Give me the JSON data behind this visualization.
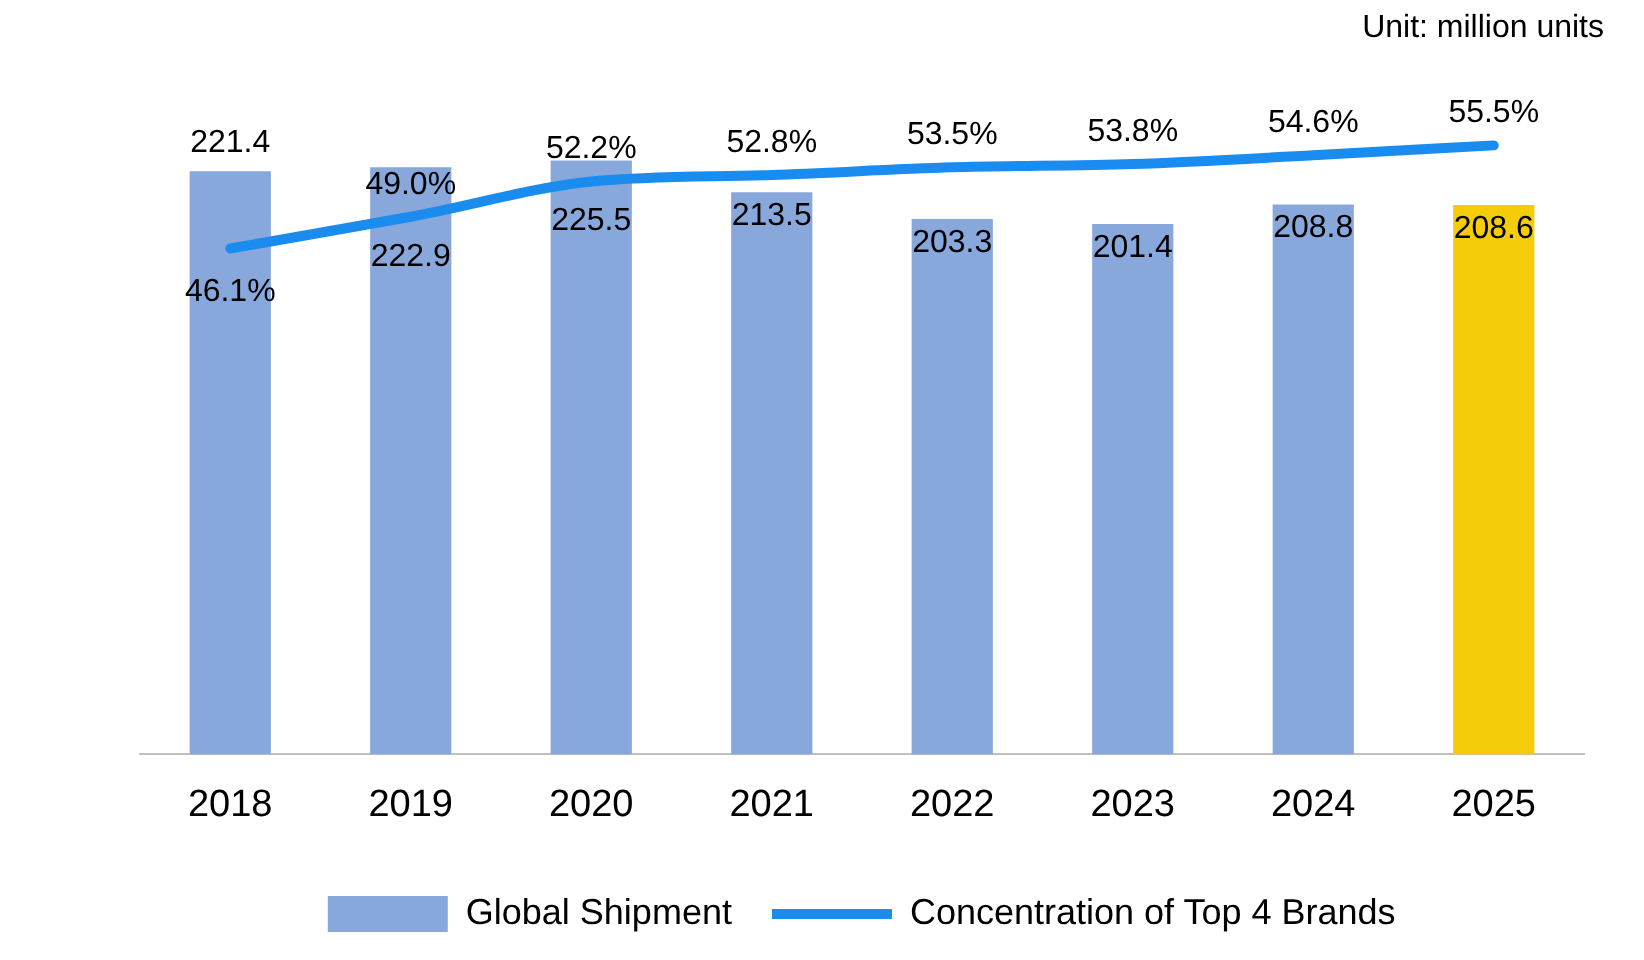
{
  "chart_data": {
    "type": "bar",
    "categories": [
      "2018",
      "2019",
      "2020",
      "2021",
      "2022",
      "2023",
      "2024",
      "2025"
    ],
    "series": [
      {
        "name": "Global Shipment",
        "colors": [
          "#88a8dc",
          "#88a8dc",
          "#88a8dc",
          "#88a8dc",
          "#88a8dc",
          "#88a8dc",
          "#88a8dc",
          "#f5cc0a"
        ],
        "values": [
          221.4,
          222.9,
          225.5,
          213.5,
          203.3,
          201.4,
          208.8,
          208.6
        ]
      },
      {
        "name": "Concentration of Top 4 Brands",
        "type": "line",
        "axis": "y2",
        "color": "#1a8cf0",
        "values": [
          46.1,
          49.0,
          52.2,
          52.8,
          53.5,
          53.8,
          54.6,
          55.5
        ],
        "value_labels": [
          "46.1%",
          "49.0%",
          "52.2%",
          "52.8%",
          "53.5%",
          "53.8%",
          "54.6%",
          "55.5%"
        ]
      }
    ],
    "tick_labels": "x",
    "data_labels": true,
    "legend": "bottom",
    "grid": false,
    "marker": "none",
    "annotations": [
      "Unit: million units"
    ]
  }
}
